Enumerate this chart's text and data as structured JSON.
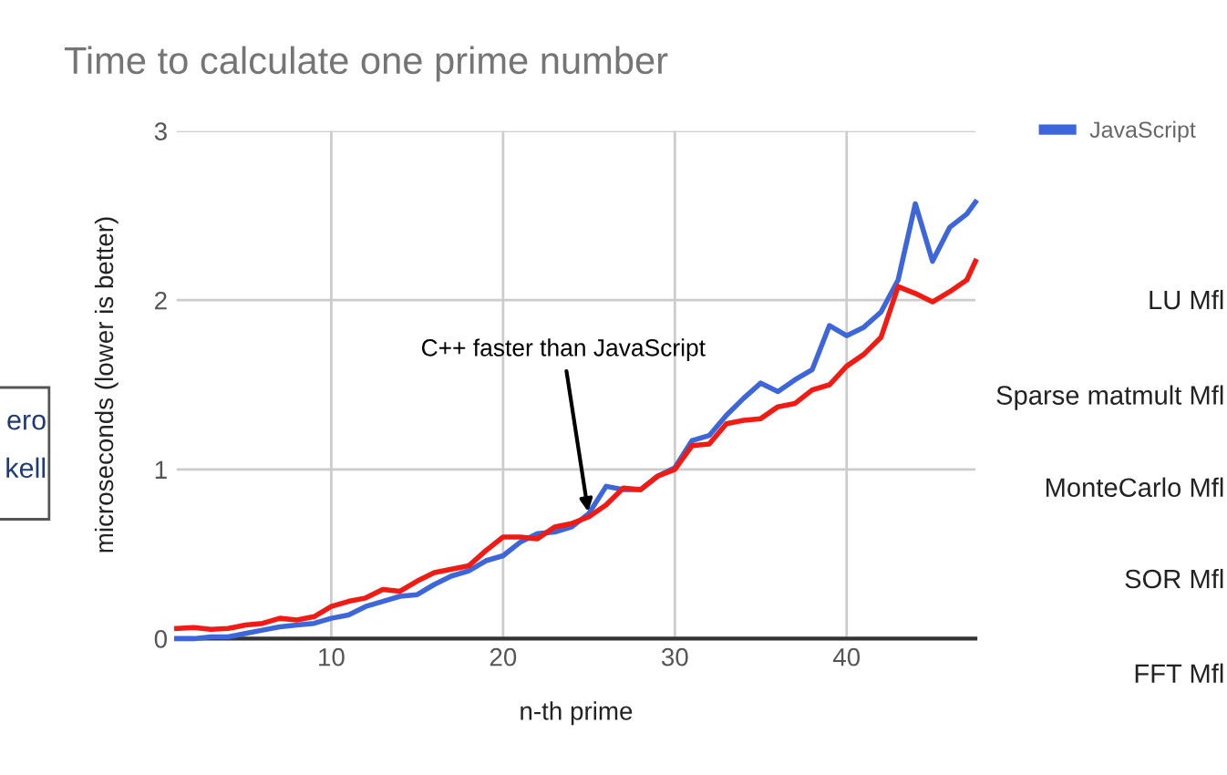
{
  "chart_data": {
    "type": "line",
    "title": "Time to calculate one prime number",
    "xlabel": "n-th prime",
    "ylabel": "microseconds (lower is better)",
    "xlim": [
      1,
      47.5
    ],
    "xticks": [
      10,
      20,
      30,
      40
    ],
    "ylim": [
      0,
      3
    ],
    "yticks": [
      0,
      1,
      2,
      3
    ],
    "grid": true,
    "legend": "top right",
    "line_style": "solid",
    "marker": "none",
    "series": [
      {
        "name": "JavaScript",
        "color": "#3c66d9",
        "x": [
          1,
          2,
          3,
          4,
          5,
          6,
          7,
          8,
          9,
          10,
          11,
          12,
          13,
          14,
          15,
          16,
          17,
          18,
          19,
          20,
          21,
          22,
          23,
          24,
          25,
          26,
          27,
          28,
          29,
          30,
          31,
          32,
          33,
          34,
          35,
          36,
          37,
          38,
          39,
          40,
          41,
          42,
          43,
          44,
          45,
          46,
          47,
          47.5
        ],
        "values": [
          0,
          0,
          0.01,
          0.01,
          0.03,
          0.05,
          0.07,
          0.08,
          0.09,
          0.12,
          0.14,
          0.19,
          0.22,
          0.25,
          0.26,
          0.32,
          0.37,
          0.4,
          0.46,
          0.49,
          0.57,
          0.62,
          0.63,
          0.66,
          0.74,
          0.9,
          0.88,
          0.88,
          0.96,
          1.01,
          1.17,
          1.2,
          1.32,
          1.42,
          1.51,
          1.46,
          1.53,
          1.59,
          1.85,
          1.79,
          1.84,
          1.93,
          2.12,
          2.57,
          2.23,
          2.43,
          2.51,
          2.58
        ]
      },
      {
        "color": "#f21b14",
        "x": [
          1,
          2,
          3,
          4,
          5,
          6,
          7,
          8,
          9,
          10,
          11,
          12,
          13,
          14,
          15,
          16,
          17,
          18,
          19,
          20,
          21,
          22,
          23,
          24,
          25,
          26,
          27,
          28,
          29,
          30,
          31,
          32,
          33,
          34,
          35,
          36,
          37,
          38,
          39,
          40,
          41,
          42,
          43,
          44,
          45,
          46,
          47,
          47.5
        ],
        "values": [
          0.06,
          0.065,
          0.055,
          0.06,
          0.08,
          0.09,
          0.12,
          0.11,
          0.13,
          0.19,
          0.22,
          0.24,
          0.29,
          0.28,
          0.34,
          0.39,
          0.41,
          0.43,
          0.52,
          0.6,
          0.6,
          0.59,
          0.66,
          0.68,
          0.72,
          0.79,
          0.89,
          0.88,
          0.96,
          1.0,
          1.14,
          1.15,
          1.27,
          1.29,
          1.3,
          1.37,
          1.39,
          1.47,
          1.5,
          1.61,
          1.68,
          1.78,
          2.08,
          2.04,
          1.99,
          2.05,
          2.12,
          2.23
        ]
      }
    ],
    "annotations": [
      {
        "text": "C++ faster than JavaScript",
        "x": 25,
        "y": 0.72
      },
      "LU Mfl",
      "Sparse matmult Mfl",
      "MonteCarlo Mfl",
      "SOR Mfl",
      "FFT Mfl",
      "ero",
      "kell"
    ]
  }
}
